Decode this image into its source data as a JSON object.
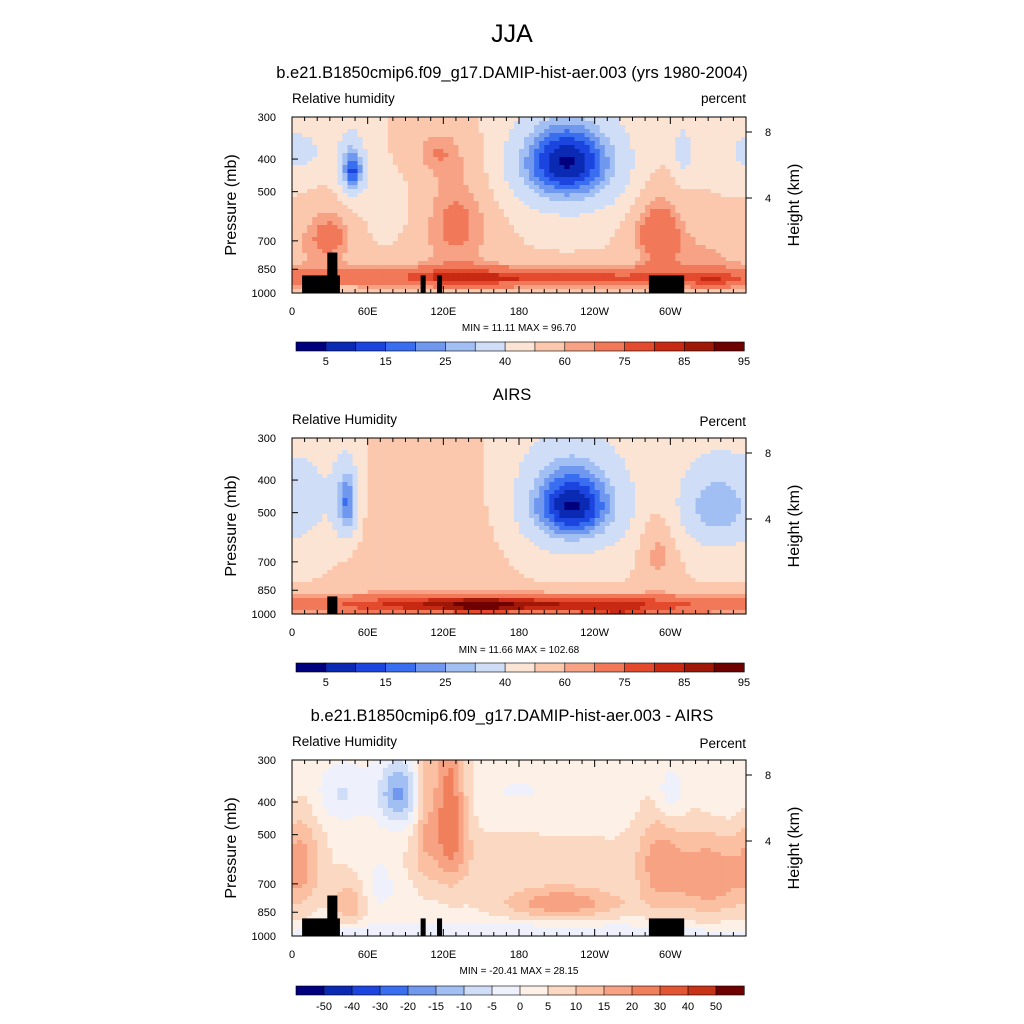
{
  "figure": {
    "title": "JJA"
  },
  "chart_data": [
    {
      "type": "heatmap",
      "panel": "model",
      "title": "b.e21.B1850cmip6.f09_g17.DAMIP-hist-aer.003 (yrs 1980-2004)",
      "left_label": "Relative humidity",
      "right_label": "percent",
      "ylabel": "Pressure (mb)",
      "ylabel_right": "Height (km)",
      "x_ticks": [
        "0",
        "60E",
        "120E",
        "180",
        "120W",
        "60W"
      ],
      "x_tick_values": [
        0,
        60,
        120,
        180,
        240,
        300
      ],
      "xlim": [
        0,
        360
      ],
      "y_ticks": [
        "300",
        "400",
        "500",
        "700",
        "850",
        "1000"
      ],
      "y_tick_values": [
        300,
        400,
        500,
        700,
        850,
        1000
      ],
      "ylim": [
        300,
        1000
      ],
      "height_ticks": [
        "8",
        "4"
      ],
      "height_tick_values": [
        8,
        4
      ],
      "stats": "MIN =  11.11  MAX =  96.70",
      "colorbar": {
        "labels": [
          "5",
          "15",
          "25",
          "40",
          "60",
          "75",
          "85",
          "95"
        ],
        "colors": [
          "#00007f",
          "#0a2ab4",
          "#1c45e0",
          "#3a6ef0",
          "#6f98ee",
          "#a2bff3",
          "#cfddf7",
          "#fbe4d4",
          "#fbc8ae",
          "#f7a284",
          "#f17858",
          "#e34a2e",
          "#c82912",
          "#9f1707",
          "#6f0000"
        ]
      },
      "fields": [
        {
          "type": "base",
          "value": 50
        },
        {
          "x": 48,
          "p": 420,
          "sx": 9,
          "sp": 70,
          "a": -22
        },
        {
          "x": 48,
          "p": 440,
          "sx": 5,
          "sp": 40,
          "a": -15
        },
        {
          "x": 218,
          "p": 420,
          "sx": 35,
          "sp": 110,
          "a": -32
        },
        {
          "x": 218,
          "p": 400,
          "sx": 22,
          "sp": 60,
          "a": -14
        },
        {
          "x": 310,
          "p": 380,
          "sx": 6,
          "sp": 60,
          "a": -14
        },
        {
          "x": 355,
          "p": 380,
          "sx": 15,
          "sp": 60,
          "a": -8
        },
        {
          "x": 15,
          "p": 380,
          "sx": 15,
          "sp": 60,
          "a": -8
        },
        {
          "x": 130,
          "p": 620,
          "sx": 22,
          "sp": 180,
          "a": 18
        },
        {
          "x": 115,
          "p": 380,
          "sx": 14,
          "sp": 40,
          "a": 10
        },
        {
          "x": 30,
          "p": 680,
          "sx": 15,
          "sp": 100,
          "a": 18
        },
        {
          "x": 290,
          "p": 650,
          "sx": 14,
          "sp": 120,
          "a": 22
        },
        {
          "x": 330,
          "p": 760,
          "sx": 30,
          "sp": 100,
          "a": 10
        },
        {
          "x": 80,
          "p": 560,
          "sx": 22,
          "sp": 90,
          "a": -5
        },
        {
          "x": 180,
          "p": 900,
          "sx": 140,
          "sp": 50,
          "a": 30
        },
        {
          "x": 340,
          "p": 920,
          "sx": 25,
          "sp": 40,
          "a": 12
        }
      ],
      "terrain": [
        [
          8,
          38,
          0.1
        ],
        [
          28,
          36,
          0.23
        ],
        [
          102,
          106,
          0.1
        ],
        [
          115,
          119,
          0.1
        ],
        [
          283,
          311,
          0.1
        ]
      ]
    },
    {
      "type": "heatmap",
      "panel": "obs",
      "title": "AIRS",
      "left_label": "Relative Humidity",
      "right_label": "Percent",
      "ylabel": "Pressure (mb)",
      "ylabel_right": "Height (km)",
      "x_ticks": [
        "0",
        "60E",
        "120E",
        "180",
        "120W",
        "60W"
      ],
      "x_tick_values": [
        0,
        60,
        120,
        180,
        240,
        300
      ],
      "xlim": [
        0,
        360
      ],
      "y_ticks": [
        "300",
        "400",
        "500",
        "700",
        "850",
        "1000"
      ],
      "y_tick_values": [
        300,
        400,
        500,
        700,
        850,
        1000
      ],
      "ylim": [
        300,
        1000
      ],
      "height_ticks": [
        "8",
        "4"
      ],
      "height_tick_values": [
        8,
        4
      ],
      "stats": "MIN =  11.66  MAX = 102.68",
      "colorbar": {
        "labels": [
          "5",
          "15",
          "25",
          "40",
          "60",
          "75",
          "85",
          "95"
        ],
        "colors": [
          "#00007f",
          "#0a2ab4",
          "#1c45e0",
          "#3a6ef0",
          "#6f98ee",
          "#a2bff3",
          "#cfddf7",
          "#fbe4d4",
          "#fbc8ae",
          "#f7a284",
          "#f17858",
          "#e34a2e",
          "#c82912",
          "#9f1707",
          "#6f0000"
        ]
      },
      "fields": [
        {
          "type": "base",
          "value": 50
        },
        {
          "x": 44,
          "p": 470,
          "sx": 7,
          "sp": 90,
          "a": -28
        },
        {
          "x": 20,
          "p": 450,
          "sx": 20,
          "sp": 150,
          "a": -10
        },
        {
          "x": 222,
          "p": 470,
          "sx": 33,
          "sp": 130,
          "a": -32
        },
        {
          "x": 222,
          "p": 480,
          "sx": 18,
          "sp": 60,
          "a": -14
        },
        {
          "x": 335,
          "p": 480,
          "sx": 22,
          "sp": 110,
          "a": -24
        },
        {
          "x": 105,
          "p": 600,
          "sx": 40,
          "sp": 200,
          "a": 10
        },
        {
          "x": 290,
          "p": 650,
          "sx": 10,
          "sp": 120,
          "a": 14
        },
        {
          "x": 180,
          "p": 940,
          "sx": 160,
          "sp": 50,
          "a": 36
        },
        {
          "x": 150,
          "p": 940,
          "sx": 18,
          "sp": 30,
          "a": 10
        },
        {
          "x": 260,
          "p": 990,
          "sx": 20,
          "sp": 20,
          "a": 10
        }
      ],
      "terrain": [
        [
          28,
          36,
          0.1
        ]
      ]
    },
    {
      "type": "heatmap",
      "panel": "difference",
      "title": "b.e21.B1850cmip6.f09_g17.DAMIP-hist-aer.003 - AIRS",
      "left_label": "Relative Humidity",
      "right_label": "Percent",
      "ylabel": "Pressure (mb)",
      "ylabel_right": "Height (km)",
      "x_ticks": [
        "0",
        "60E",
        "120E",
        "180",
        "120W",
        "60W"
      ],
      "x_tick_values": [
        0,
        60,
        120,
        180,
        240,
        300
      ],
      "xlim": [
        0,
        360
      ],
      "y_ticks": [
        "300",
        "400",
        "500",
        "700",
        "850",
        "1000"
      ],
      "y_tick_values": [
        300,
        400,
        500,
        700,
        850,
        1000
      ],
      "ylim": [
        300,
        1000
      ],
      "height_ticks": [
        "8",
        "4"
      ],
      "height_tick_values": [
        8,
        4
      ],
      "stats": "MIN = -20.41  MAX =  28.15",
      "colorbar": {
        "labels": [
          "-50",
          "-40",
          "-30",
          "-20",
          "-15",
          "-10",
          "-5",
          "0",
          "5",
          "10",
          "15",
          "20",
          "30",
          "40",
          "50"
        ],
        "colors": [
          "#00007f",
          "#0a2ab4",
          "#1c45e0",
          "#3a6ef0",
          "#6f98ee",
          "#a2bff3",
          "#cfddf7",
          "#eef1fb",
          "#fdf0e6",
          "#fbd8c2",
          "#fbc0a2",
          "#f7a282",
          "#f07f5c",
          "#e25633",
          "#c83216",
          "#6f0000"
        ]
      },
      "fields": [
        {
          "type": "base",
          "value": 2.5
        },
        {
          "x": 85,
          "p": 380,
          "sx": 12,
          "sp": 60,
          "a": -18
        },
        {
          "x": 125,
          "p": 420,
          "sx": 10,
          "sp": 170,
          "a": 22
        },
        {
          "x": 105,
          "p": 420,
          "sx": 6,
          "sp": 170,
          "a": 10
        },
        {
          "x": 40,
          "p": 380,
          "sx": 15,
          "sp": 50,
          "a": -8
        },
        {
          "x": 8,
          "p": 600,
          "sx": 10,
          "sp": 150,
          "a": 10
        },
        {
          "x": 45,
          "p": 800,
          "sx": 9,
          "sp": 80,
          "a": 12
        },
        {
          "x": 215,
          "p": 800,
          "sx": 35,
          "sp": 60,
          "a": 16
        },
        {
          "x": 330,
          "p": 670,
          "sx": 25,
          "sp": 140,
          "a": 16
        },
        {
          "x": 290,
          "p": 600,
          "sx": 12,
          "sp": 150,
          "a": 10
        },
        {
          "x": 180,
          "p": 380,
          "sx": 50,
          "sp": 60,
          "a": -3
        },
        {
          "x": 180,
          "p": 600,
          "sx": 90,
          "sp": 100,
          "a": 5
        },
        {
          "x": 300,
          "p": 380,
          "sx": 8,
          "sp": 50,
          "a": -8
        },
        {
          "x": 345,
          "p": 400,
          "sx": 15,
          "sp": 50,
          "a": -3
        },
        {
          "x": 180,
          "p": 980,
          "sx": 180,
          "sp": 40,
          "a": -7
        },
        {
          "x": 70,
          "p": 680,
          "sx": 10,
          "sp": 100,
          "a": -6
        }
      ],
      "terrain": [
        [
          8,
          38,
          0.1
        ],
        [
          28,
          36,
          0.23
        ],
        [
          102,
          106,
          0.1
        ],
        [
          115,
          119,
          0.1
        ],
        [
          283,
          311,
          0.1
        ]
      ]
    }
  ]
}
